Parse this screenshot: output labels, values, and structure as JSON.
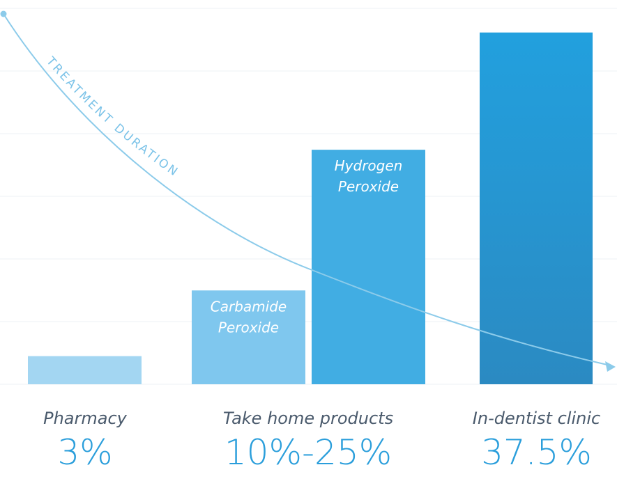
{
  "chart_data": {
    "type": "bar",
    "title": "",
    "xlabel": "",
    "ylabel": "",
    "ylim": [
      0,
      40
    ],
    "grid": true,
    "legend": "none",
    "bars": [
      {
        "name": "Pharmacy",
        "label": "",
        "value": 3,
        "color": "#a3d6f2"
      },
      {
        "name": "Carbamide Peroxide",
        "label": "Carbamide Peroxide",
        "value": 10,
        "color": "#7fc7ee"
      },
      {
        "name": "Hydrogen Peroxide",
        "label": "Hydrogen Peroxide",
        "value": 25,
        "color": "#41ade3"
      },
      {
        "name": "In-dentist clinic",
        "label": "",
        "value": 37.5,
        "color_top": "#22a0de",
        "color_bottom": "#2b8ac2"
      }
    ],
    "groups": [
      {
        "label": "Pharmacy",
        "value": "3%"
      },
      {
        "label": "Take home products",
        "value": "10%-25%"
      },
      {
        "label": "In-dentist clinic",
        "value": "37.5%"
      }
    ],
    "annotation": {
      "text": "TREATMENT DURATION",
      "color": "#7cc3e8"
    }
  }
}
